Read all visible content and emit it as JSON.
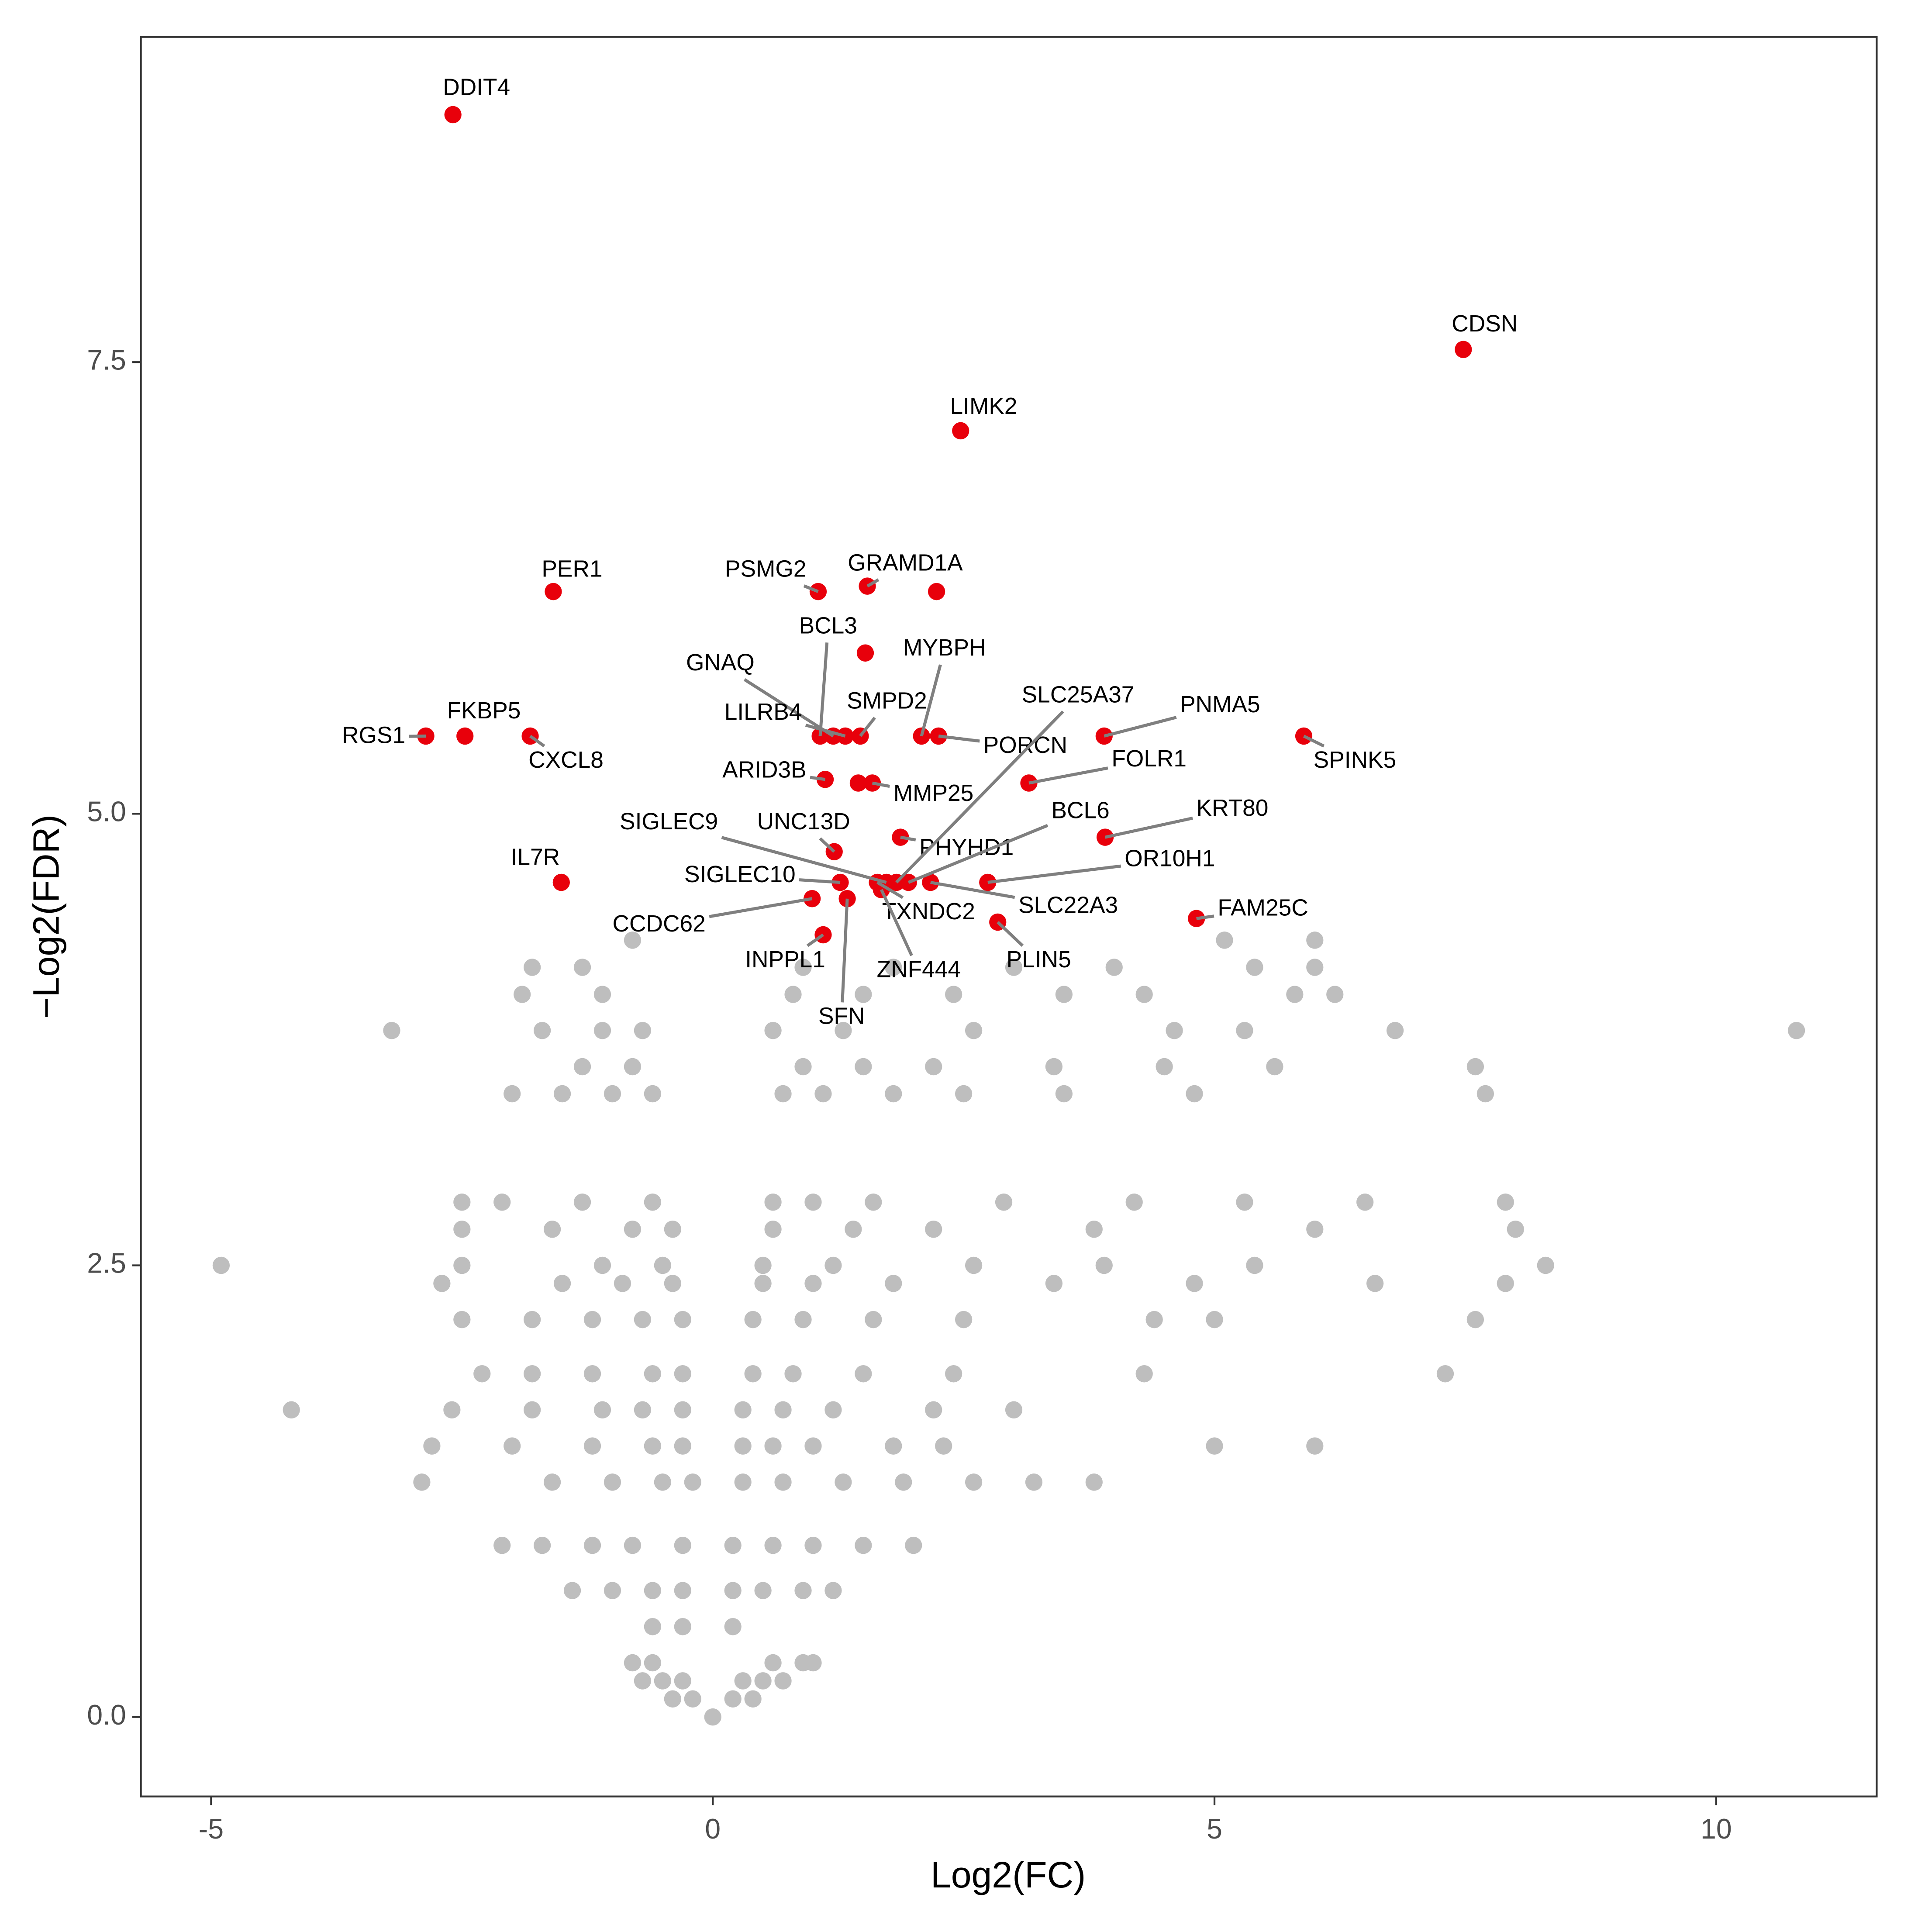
{
  "chart_data": {
    "type": "scatter",
    "x_label": "Log2(FC)",
    "y_label": "−Log2(FDR)",
    "xlim": [
      -5.7,
      11.6
    ],
    "ylim": [
      -0.44,
      9.3
    ],
    "xticks": [
      -5,
      0,
      5,
      10
    ],
    "yticks": [
      {
        "value": 0,
        "label": "0.0"
      },
      2.5,
      {
        "value": 5,
        "label": "5.0"
      },
      7.5
    ],
    "series": [
      {
        "color": "#bebebe",
        "x": [
          0,
          -0.4,
          -0.2,
          0.2,
          0.4,
          -0.7,
          -0.5,
          -0.3,
          0.3,
          0.5,
          0.7,
          -0.8,
          -0.6,
          0.6,
          0.9,
          1.0,
          -0.6,
          -0.3,
          0.2,
          -1.4,
          -1.0,
          -0.6,
          -0.3,
          0.2,
          0.5,
          0.9,
          1.2,
          -2.1,
          -1.7,
          -1.2,
          -0.8,
          -0.3,
          0.2,
          0.6,
          1.0,
          1.5,
          2.0,
          -2.9,
          -1.6,
          -1.0,
          -0.5,
          -0.2,
          0.3,
          0.7,
          1.3,
          1.9,
          2.6,
          3.2,
          3.8,
          -2.8,
          -2.0,
          -1.2,
          -0.6,
          -0.3,
          0.3,
          0.6,
          1.0,
          1.8,
          2.3,
          5.0,
          6.0,
          -4.2,
          -2.6,
          -1.8,
          -1.1,
          -0.7,
          -0.3,
          0.3,
          0.7,
          1.2,
          2.2,
          3.0,
          -2.3,
          -1.8,
          -1.2,
          -0.6,
          -0.3,
          0.4,
          0.8,
          1.5,
          2.4,
          4.3,
          7.3,
          -2.5,
          -1.8,
          -1.2,
          -0.7,
          -0.3,
          0.4,
          0.9,
          1.6,
          2.5,
          4.4,
          5.0,
          7.6,
          -2.7,
          -1.5,
          -0.9,
          -0.4,
          0.5,
          1.0,
          1.8,
          3.4,
          4.8,
          6.6,
          7.9,
          -4.9,
          -2.5,
          -1.1,
          -0.5,
          0.5,
          1.2,
          2.6,
          3.9,
          5.4,
          8.3,
          -2.5,
          -1.6,
          -0.8,
          -0.4,
          0.6,
          1.4,
          2.2,
          3.8,
          6.0,
          8.0,
          -2.5,
          -2.1,
          -1.3,
          -0.6,
          0.6,
          1.0,
          1.6,
          2.9,
          4.2,
          5.3,
          6.5,
          7.9,
          -2.0,
          -1.5,
          -1.0,
          -0.6,
          0.7,
          1.1,
          1.8,
          2.5,
          3.5,
          4.8,
          7.7,
          -1.3,
          -0.8,
          0.9,
          1.5,
          2.2,
          3.4,
          4.5,
          5.6,
          7.6,
          -3.2,
          -1.7,
          -1.1,
          -0.7,
          0.6,
          1.3,
          2.6,
          4.6,
          5.3,
          6.8,
          10.8,
          -1.9,
          -1.1,
          0.8,
          1.5,
          2.4,
          3.5,
          4.3,
          5.8,
          6.2,
          -1.8,
          -1.3,
          0.9,
          1.8,
          3.0,
          4.0,
          5.4,
          6.0,
          -0.8,
          5.1,
          6.0
        ],
        "y": [
          0,
          0.1,
          0.1,
          0.1,
          0.1,
          0.2,
          0.2,
          0.2,
          0.2,
          0.2,
          0.2,
          0.3,
          0.3,
          0.3,
          0.3,
          0.3,
          0.5,
          0.5,
          0.5,
          0.7,
          0.7,
          0.7,
          0.7,
          0.7,
          0.7,
          0.7,
          0.7,
          0.95,
          0.95,
          0.95,
          0.95,
          0.95,
          0.95,
          0.95,
          0.95,
          0.95,
          0.95,
          1.3,
          1.3,
          1.3,
          1.3,
          1.3,
          1.3,
          1.3,
          1.3,
          1.3,
          1.3,
          1.3,
          1.3,
          1.5,
          1.5,
          1.5,
          1.5,
          1.5,
          1.5,
          1.5,
          1.5,
          1.5,
          1.5,
          1.5,
          1.5,
          1.7,
          1.7,
          1.7,
          1.7,
          1.7,
          1.7,
          1.7,
          1.7,
          1.7,
          1.7,
          1.7,
          1.9,
          1.9,
          1.9,
          1.9,
          1.9,
          1.9,
          1.9,
          1.9,
          1.9,
          1.9,
          1.9,
          2.2,
          2.2,
          2.2,
          2.2,
          2.2,
          2.2,
          2.2,
          2.2,
          2.2,
          2.2,
          2.2,
          2.2,
          2.4,
          2.4,
          2.4,
          2.4,
          2.4,
          2.4,
          2.4,
          2.4,
          2.4,
          2.4,
          2.4,
          2.5,
          2.5,
          2.5,
          2.5,
          2.5,
          2.5,
          2.5,
          2.5,
          2.5,
          2.5,
          2.7,
          2.7,
          2.7,
          2.7,
          2.7,
          2.7,
          2.7,
          2.7,
          2.7,
          2.7,
          2.85,
          2.85,
          2.85,
          2.85,
          2.85,
          2.85,
          2.85,
          2.85,
          2.85,
          2.85,
          2.85,
          2.85,
          3.45,
          3.45,
          3.45,
          3.45,
          3.45,
          3.45,
          3.45,
          3.45,
          3.45,
          3.45,
          3.45,
          3.6,
          3.6,
          3.6,
          3.6,
          3.6,
          3.6,
          3.6,
          3.6,
          3.6,
          3.8,
          3.8,
          3.8,
          3.8,
          3.8,
          3.8,
          3.8,
          3.8,
          3.8,
          3.8,
          3.8,
          4.0,
          4.0,
          4.0,
          4.0,
          4.0,
          4.0,
          4.0,
          4.0,
          4.0,
          4.15,
          4.15,
          4.15,
          4.15,
          4.15,
          4.15,
          4.15,
          4.15,
          4.3,
          4.3,
          4.3
        ]
      },
      {
        "color": "#e8000b",
        "x": [
          -2.59,
          7.48,
          2.47,
          -1.59,
          1.05,
          1.54,
          2.23,
          1.52,
          -2.86,
          -2.47,
          -1.82,
          5.89,
          3.9,
          1.07,
          1.2,
          1.32,
          1.47,
          2.08,
          2.25,
          1.12,
          3.15,
          1.59,
          1.45,
          3.91,
          1.87,
          1.21,
          -1.51,
          1.27,
          1.64,
          1.73,
          1.83,
          1.95,
          2.17,
          2.74,
          0.99,
          1.34,
          1.68,
          1.1,
          2.84,
          4.82
        ],
        "y": [
          8.87,
          7.57,
          7.12,
          6.23,
          6.23,
          6.26,
          6.23,
          5.89,
          5.43,
          5.43,
          5.43,
          5.43,
          5.43,
          5.43,
          5.43,
          5.43,
          5.43,
          5.43,
          5.43,
          5.19,
          5.17,
          5.17,
          5.17,
          4.87,
          4.87,
          4.79,
          4.62,
          4.62,
          4.62,
          4.62,
          4.62,
          4.62,
          4.62,
          4.62,
          4.53,
          4.53,
          4.58,
          4.33,
          4.4,
          4.42
        ],
        "labels": [
          "DDIT4",
          "CDSN",
          "LIMK2",
          "PER1",
          "PSMG2",
          "GRAMD1A",
          null,
          null,
          "RGS1",
          "FKBP5",
          "CXCL8",
          "SPINK5",
          "PNMA5",
          "BCL3",
          "GNAQ",
          "LILRB4",
          "SMPD2",
          "MYBPH",
          "PORCN",
          "ARID3B",
          "FOLR1",
          "MMP25",
          null,
          "KRT80",
          "PHYHD1",
          "UNC13D",
          "IL7R",
          "SIGLEC10",
          "TXNDC2",
          "SIGLEC9",
          "SLC25A37",
          "BCL6",
          "SLC22A3",
          "OR10H1",
          "CCDC62",
          "SFN",
          "ZNF444",
          "INPPL1",
          "PLIN5",
          "FAM25C"
        ]
      }
    ]
  }
}
